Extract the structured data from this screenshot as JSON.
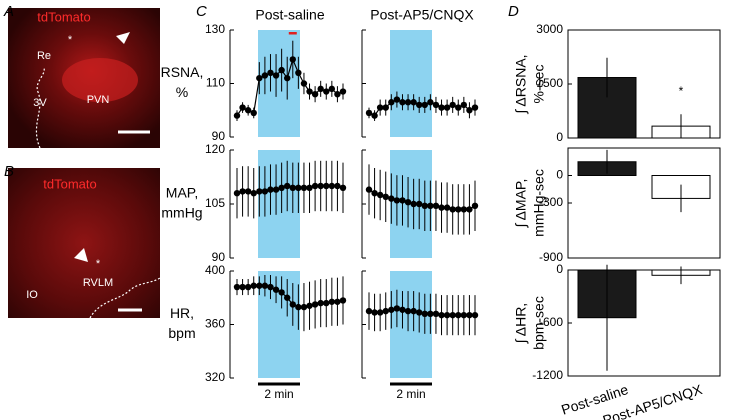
{
  "figure": {
    "letters": [
      "A",
      "B",
      "C",
      "D"
    ],
    "images": [
      {
        "title": "tdTomato",
        "labels": [
          "Re",
          "3V",
          "PVN",
          "*"
        ]
      },
      {
        "title": "tdTomato",
        "labels": [
          "IO",
          "RVLM",
          "*"
        ]
      }
    ]
  },
  "panel_c": {
    "columns": [
      "Post-saline",
      "Post-AP5/CNQX"
    ],
    "scale_bar": "2 min"
  },
  "chart_data": [
    {
      "type": "line",
      "ylabel": [
        "RSNA,",
        "%"
      ],
      "ylim": [
        90,
        130
      ],
      "yticks": [
        90,
        110,
        130
      ],
      "series": [
        {
          "color": "#000000",
          "values": [
            98,
            101,
            100,
            99,
            112,
            113,
            114,
            113,
            115,
            112,
            119,
            114,
            110,
            107,
            106,
            108,
            107,
            108,
            106,
            107
          ],
          "errors": [
            2,
            2,
            2,
            2,
            6,
            7,
            7,
            8,
            8,
            8,
            7,
            6,
            4,
            3,
            3,
            3,
            3,
            3,
            3,
            3
          ]
        },
        {
          "color": "#000000",
          "values": [
            99,
            98,
            101,
            101,
            103,
            104,
            103,
            103,
            103,
            102,
            102,
            103,
            102,
            101,
            101,
            102,
            101,
            102,
            100,
            101
          ],
          "errors": [
            2,
            2,
            3,
            3,
            3,
            3,
            3,
            3,
            3,
            3,
            3,
            3,
            3,
            3,
            3,
            3,
            3,
            3,
            3,
            3
          ]
        }
      ]
    },
    {
      "type": "line",
      "ylabel": [
        "MAP,",
        "mmHg"
      ],
      "ylim": [
        90,
        120
      ],
      "yticks": [
        90,
        105,
        120
      ],
      "series": [
        {
          "color": "#000000",
          "values": [
            108,
            108.5,
            108.5,
            108,
            108.5,
            108.5,
            109,
            109,
            109.5,
            110,
            109.5,
            109.5,
            109.5,
            109.5,
            110,
            110,
            110,
            110,
            110,
            109.5
          ],
          "errors": [
            7,
            7,
            7,
            7,
            7,
            7,
            7,
            7,
            7,
            7,
            7,
            7,
            7,
            7,
            7,
            7,
            7,
            7,
            7,
            7
          ]
        },
        {
          "color": "#000000",
          "values": [
            109,
            108,
            107.5,
            107,
            106.5,
            106,
            106,
            105.5,
            105,
            105,
            104.5,
            104.5,
            104.5,
            104,
            104,
            103.5,
            103.5,
            103.5,
            103.5,
            104.5
          ],
          "errors": [
            7,
            7,
            7,
            7,
            7,
            7,
            7,
            7,
            7,
            7,
            7,
            7,
            7,
            7,
            7,
            7,
            7,
            7,
            7,
            7
          ]
        }
      ]
    },
    {
      "type": "line",
      "ylabel": [
        "HR,",
        "bpm"
      ],
      "ylim": [
        320,
        400
      ],
      "yticks": [
        320,
        360,
        400
      ],
      "series": [
        {
          "color": "#000000",
          "values": [
            388,
            388,
            388,
            389,
            389,
            389,
            388,
            386,
            384,
            380,
            375,
            373,
            373,
            374,
            375,
            376,
            376,
            377,
            377,
            378
          ],
          "errors": [
            6,
            6,
            6,
            7,
            7,
            8,
            9,
            10,
            12,
            14,
            16,
            17,
            18,
            18,
            18,
            18,
            18,
            18,
            18,
            18
          ]
        },
        {
          "color": "#000000",
          "values": [
            370,
            369,
            369,
            370,
            371,
            372,
            371,
            370,
            370,
            369,
            368,
            368,
            368,
            367,
            367,
            367,
            367,
            367,
            367,
            367
          ],
          "errors": [
            14,
            14,
            14,
            14,
            14,
            14,
            14,
            15,
            15,
            15,
            15,
            15,
            15,
            15,
            15,
            15,
            15,
            15,
            15,
            15
          ]
        }
      ]
    },
    {
      "type": "bar",
      "ylabel": [
        "∫ ΔRSNA,",
        "%-sec"
      ],
      "ylim": [
        0,
        3000
      ],
      "yticks": [
        0,
        1500,
        3000
      ],
      "values": [
        1680,
        330
      ],
      "errors": [
        550,
        330
      ],
      "colors": [
        "#1a1a1a",
        "#ffffff"
      ],
      "annotation": "*"
    },
    {
      "type": "bar",
      "ylabel": [
        "∫ ΔMAP,",
        "mmHg-sec"
      ],
      "ylim": [
        -900,
        300
      ],
      "yticks": [
        -900,
        -300,
        0
      ],
      "values": [
        150,
        -250
      ],
      "errors": [
        130,
        150
      ],
      "colors": [
        "#1a1a1a",
        "#ffffff"
      ]
    },
    {
      "type": "bar",
      "ylabel": [
        "∫ ΔHR,",
        "bpm-sec"
      ],
      "ylim": [
        -1200,
        0
      ],
      "yticks": [
        -1200,
        -600,
        0
      ],
      "values": [
        -540,
        -60
      ],
      "errors": [
        600,
        100
      ],
      "colors": [
        "#1a1a1a",
        "#ffffff"
      ],
      "categories": [
        "Post-saline",
        "Post-AP5/CNQX"
      ]
    }
  ]
}
